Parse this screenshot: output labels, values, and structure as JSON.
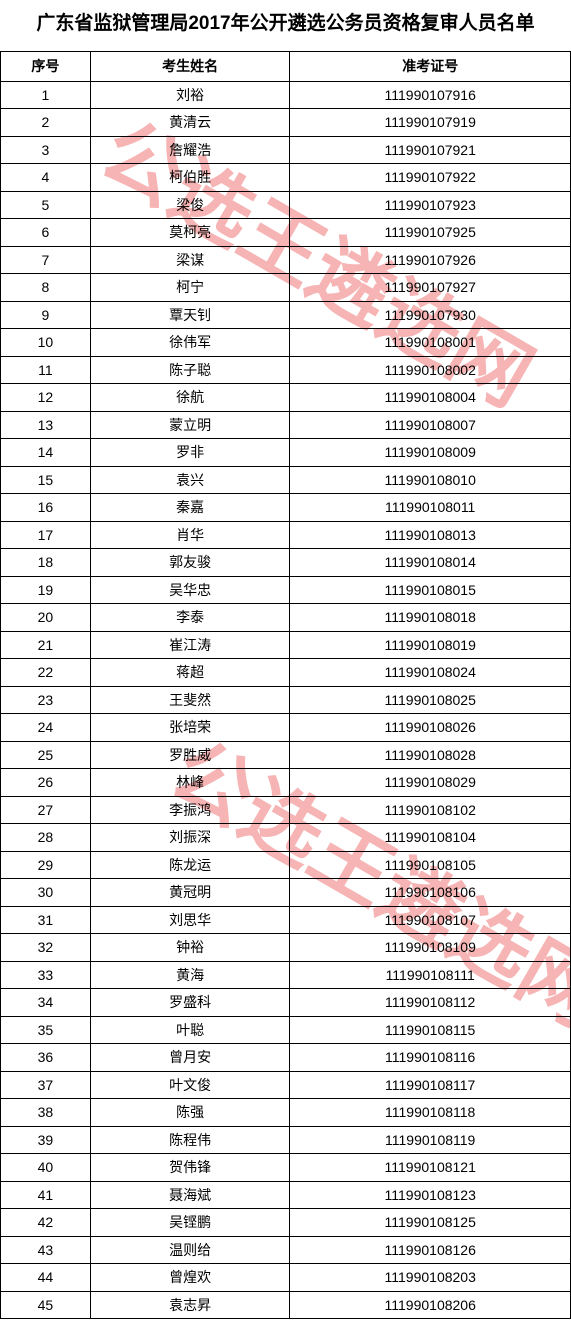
{
  "title": "广东省监狱管理局2017年公开遴选公务员资格复审人员名单",
  "watermark_text": "公选王遴选网",
  "watermark_color": "#e62828",
  "table": {
    "columns": [
      "序号",
      "考生姓名",
      "准考证号"
    ],
    "rows": [
      [
        "1",
        "刘裕",
        "111990107916"
      ],
      [
        "2",
        "黄清云",
        "111990107919"
      ],
      [
        "3",
        "詹耀浩",
        "111990107921"
      ],
      [
        "4",
        "柯伯胜",
        "111990107922"
      ],
      [
        "5",
        "梁俊",
        "111990107923"
      ],
      [
        "6",
        "莫柯亮",
        "111990107925"
      ],
      [
        "7",
        "梁谋",
        "111990107926"
      ],
      [
        "8",
        "柯宁",
        "111990107927"
      ],
      [
        "9",
        "覃天钊",
        "111990107930"
      ],
      [
        "10",
        "徐伟军",
        "111990108001"
      ],
      [
        "11",
        "陈子聪",
        "111990108002"
      ],
      [
        "12",
        "徐航",
        "111990108004"
      ],
      [
        "13",
        "蒙立明",
        "111990108007"
      ],
      [
        "14",
        "罗非",
        "111990108009"
      ],
      [
        "15",
        "袁兴",
        "111990108010"
      ],
      [
        "16",
        "秦嘉",
        "111990108011"
      ],
      [
        "17",
        "肖华",
        "111990108013"
      ],
      [
        "18",
        "郭友骏",
        "111990108014"
      ],
      [
        "19",
        "吴华忠",
        "111990108015"
      ],
      [
        "20",
        "李泰",
        "111990108018"
      ],
      [
        "21",
        "崔江涛",
        "111990108019"
      ],
      [
        "22",
        "蒋超",
        "111990108024"
      ],
      [
        "23",
        "王斐然",
        "111990108025"
      ],
      [
        "24",
        "张培荣",
        "111990108026"
      ],
      [
        "25",
        "罗胜威",
        "111990108028"
      ],
      [
        "26",
        "林峰",
        "111990108029"
      ],
      [
        "27",
        "李振鸿",
        "111990108102"
      ],
      [
        "28",
        "刘振深",
        "111990108104"
      ],
      [
        "29",
        "陈龙运",
        "111990108105"
      ],
      [
        "30",
        "黄冠明",
        "111990108106"
      ],
      [
        "31",
        "刘思华",
        "111990108107"
      ],
      [
        "32",
        "钟裕",
        "111990108109"
      ],
      [
        "33",
        "黄海",
        "111990108111"
      ],
      [
        "34",
        "罗盛科",
        "111990108112"
      ],
      [
        "35",
        "叶聪",
        "111990108115"
      ],
      [
        "36",
        "曾月安",
        "111990108116"
      ],
      [
        "37",
        "叶文俊",
        "111990108117"
      ],
      [
        "38",
        "陈强",
        "111990108118"
      ],
      [
        "39",
        "陈程伟",
        "111990108119"
      ],
      [
        "40",
        "贺伟锋",
        "111990108121"
      ],
      [
        "41",
        "聂海斌",
        "111990108123"
      ],
      [
        "42",
        "吴铿鹏",
        "111990108125"
      ],
      [
        "43",
        "温则给",
        "111990108126"
      ],
      [
        "44",
        "曾煌欢",
        "111990108203"
      ],
      [
        "45",
        "袁志昇",
        "111990108206"
      ]
    ],
    "border_color": "#000000",
    "text_color": "#000000",
    "background_color": "#ffffff",
    "header_fontsize": 14,
    "cell_fontsize": 14,
    "title_fontsize": 19
  }
}
